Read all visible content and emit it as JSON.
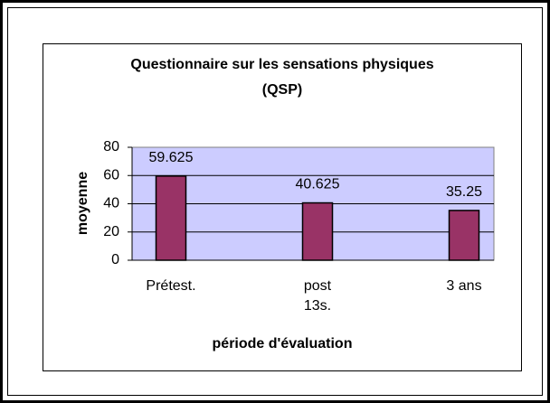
{
  "chart_data": {
    "type": "bar",
    "title": "Questionnaire sur les sensations physiques (QSP)",
    "categories": [
      "Prétest.",
      "post 13s.",
      "3 ans"
    ],
    "values": [
      59.625,
      40.625,
      35.25
    ],
    "color": "#993366",
    "xlabel": "période d'évaluation",
    "ylabel": "moyenne",
    "ylim": [
      0,
      80
    ],
    "yticks": [
      0,
      20,
      40,
      60,
      80
    ],
    "grid": true
  }
}
